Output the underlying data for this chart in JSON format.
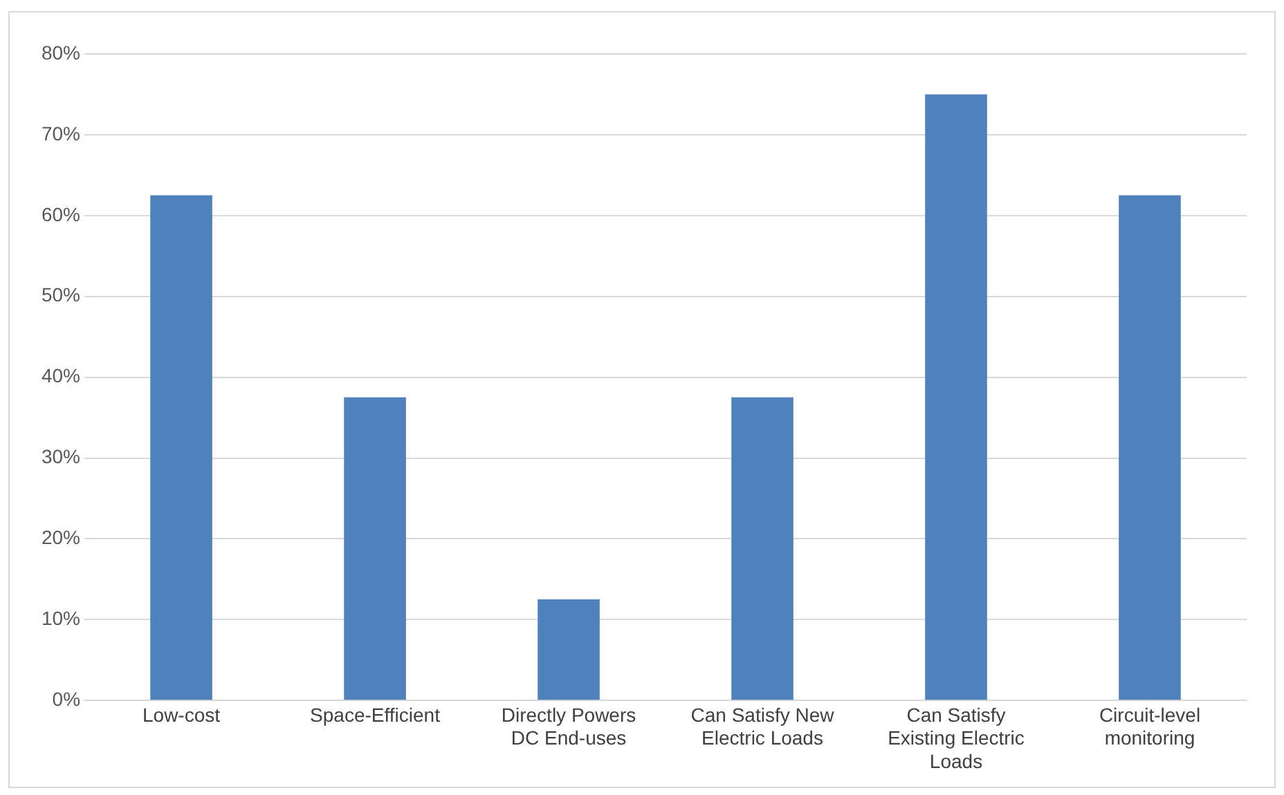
{
  "chart_data": {
    "type": "bar",
    "categories": [
      "Low-cost",
      "Space-Efficient",
      "Directly Powers DC End-uses",
      "Can Satisfy New Electric Loads",
      "Can Satisfy Existing Electric Loads",
      "Circuit-level monitoring"
    ],
    "values": [
      62.5,
      37.5,
      12.5,
      37.5,
      75,
      62.5
    ],
    "color": "#4f81bd",
    "ylim": [
      0,
      80
    ],
    "yticks": [
      {
        "value": 0,
        "label": "0%"
      },
      {
        "value": 10,
        "label": "10%"
      },
      {
        "value": 20,
        "label": "20%"
      },
      {
        "value": 30,
        "label": "30%"
      },
      {
        "value": 40,
        "label": "40%"
      },
      {
        "value": 50,
        "label": "50%"
      },
      {
        "value": 60,
        "label": "60%"
      },
      {
        "value": 70,
        "label": "70%"
      },
      {
        "value": 80,
        "label": "80%"
      }
    ],
    "grid": "y",
    "legend": false
  }
}
